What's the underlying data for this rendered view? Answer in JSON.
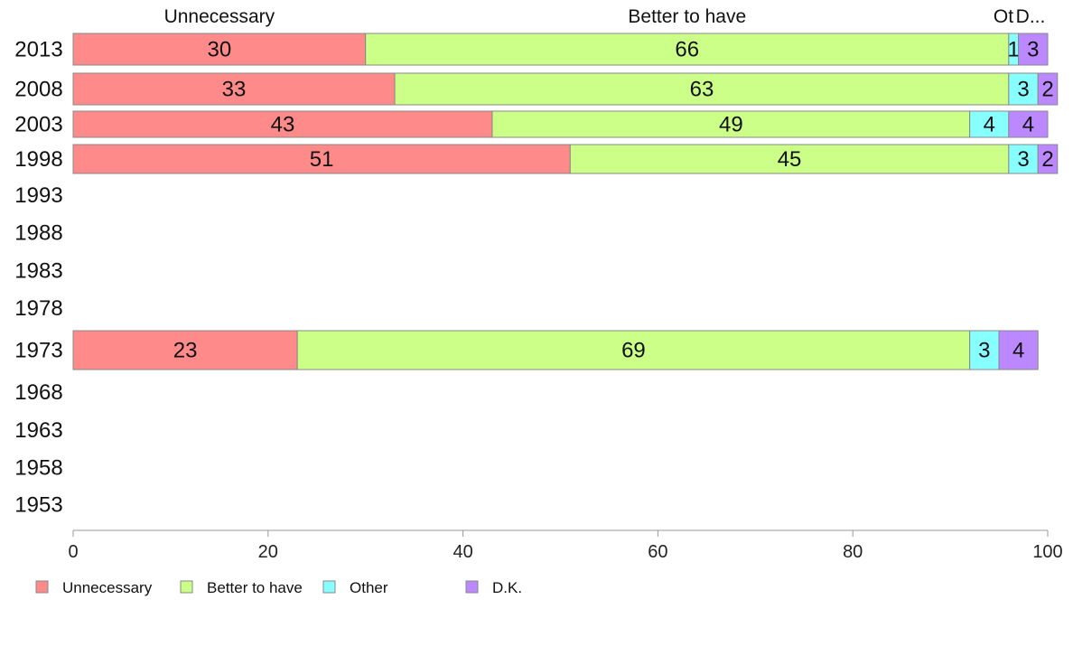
{
  "chart_data": {
    "type": "bar",
    "orientation": "horizontal",
    "stacked": true,
    "xlim": [
      0,
      100
    ],
    "x_ticks": [
      "0",
      "20",
      "40",
      "60",
      "80",
      "100"
    ],
    "categories": [
      "2013",
      "2008",
      "2003",
      "1998",
      "1993",
      "1988",
      "1983",
      "1978",
      "1973",
      "1968",
      "1963",
      "1958",
      "1953"
    ],
    "column_headers": [
      "Unnecessary",
      "Better to have",
      "Ot",
      "D..."
    ],
    "series": [
      {
        "name": "Unnecessary",
        "color": "#ff8a8a",
        "values": [
          30,
          33,
          43,
          51,
          null,
          null,
          null,
          null,
          23,
          null,
          null,
          null,
          null
        ],
        "labels": [
          "30",
          "33",
          "43",
          "51",
          "",
          "",
          "",
          "",
          "23",
          "",
          "",
          "",
          ""
        ]
      },
      {
        "name": "Better to have",
        "color": "#ccff88",
        "values": [
          66,
          63,
          49,
          45,
          null,
          null,
          null,
          null,
          69,
          null,
          null,
          null,
          null
        ],
        "labels": [
          "66",
          "63",
          "49",
          "45",
          "",
          "",
          "",
          "",
          "69",
          "",
          "",
          "",
          ""
        ]
      },
      {
        "name": "Other",
        "color": "#88ffff",
        "values": [
          1,
          3,
          4,
          3,
          null,
          null,
          null,
          null,
          3,
          null,
          null,
          null,
          null
        ],
        "labels": [
          "1",
          "3",
          "4",
          "3",
          "",
          "",
          "",
          "",
          "3",
          "",
          "",
          "",
          ""
        ]
      },
      {
        "name": "D.K.",
        "color": "#bb88ff",
        "values": [
          3,
          2,
          4,
          2,
          null,
          null,
          null,
          null,
          4,
          null,
          null,
          null,
          null
        ],
        "labels": [
          "3",
          "2",
          "4",
          "2",
          "",
          "",
          "",
          "",
          "4",
          "",
          "",
          "",
          ""
        ]
      }
    ],
    "legend_position": "bottom-left",
    "grid": false
  }
}
